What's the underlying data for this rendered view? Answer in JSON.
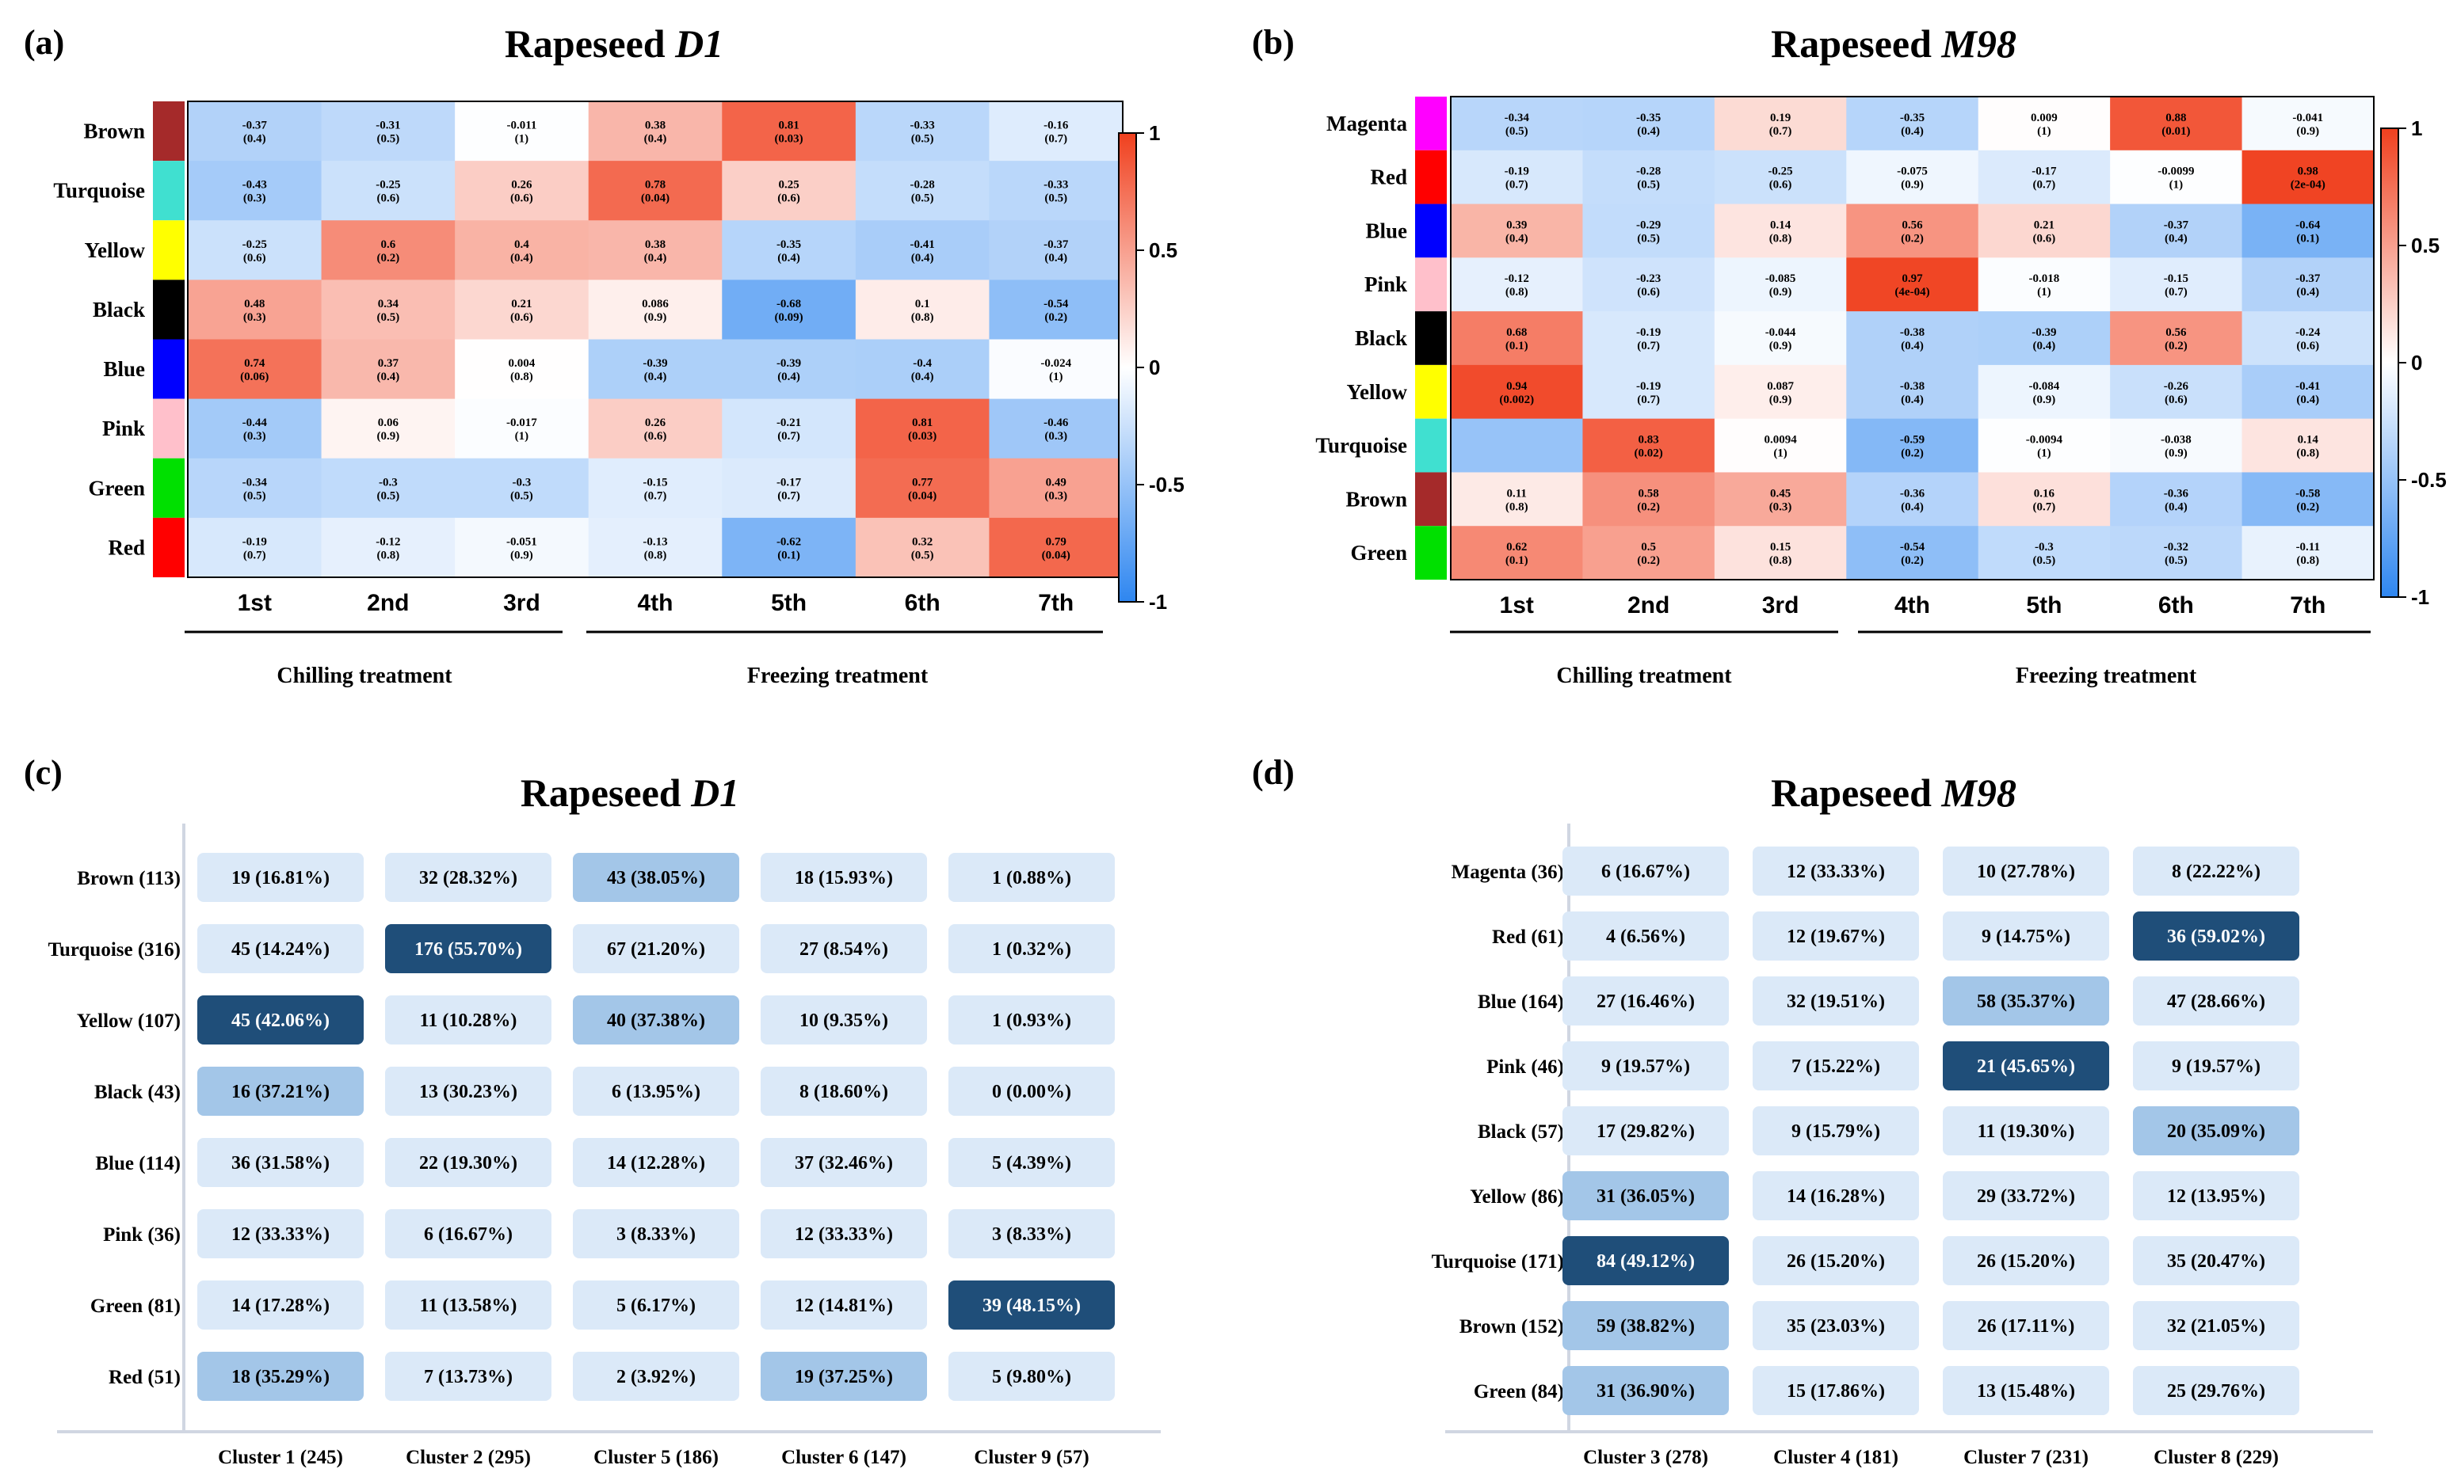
{
  "panels": [
    {
      "label": "(a)",
      "title_prefix": "Rapeseed ",
      "title_italic": "D1",
      "groups": [
        "Chilling treatment",
        "Freezing treatment"
      ]
    },
    {
      "label": "(b)",
      "title_prefix": "Rapeseed ",
      "title_italic": "M98",
      "groups": [
        "Chilling treatment",
        "Freezing treatment"
      ]
    },
    {
      "label": "(c)",
      "title_prefix": "Rapeseed ",
      "title_italic": "D1"
    },
    {
      "label": "(d)",
      "title_prefix": "Rapeseed ",
      "title_italic": "M98"
    }
  ],
  "chart_data": [
    {
      "type": "heatmap",
      "title": "Rapeseed D1",
      "columns": [
        "1st",
        "2nd",
        "3rd",
        "4th",
        "5th",
        "6th",
        "7th"
      ],
      "rows": [
        {
          "name": "Brown",
          "color": "#a52a2a",
          "r": [
            "-0.37",
            "-0.31",
            "-0.011",
            "0.38",
            "0.81",
            "-0.33",
            "-0.16"
          ],
          "p": [
            "(0.4)",
            "(0.5)",
            "(1)",
            "(0.4)",
            "(0.03)",
            "(0.5)",
            "(0.7)"
          ]
        },
        {
          "name": "Turquoise",
          "color": "#40e0d0",
          "r": [
            "-0.43",
            "-0.25",
            "0.26",
            "0.78",
            "0.25",
            "-0.28",
            "-0.33"
          ],
          "p": [
            "(0.3)",
            "(0.6)",
            "(0.6)",
            "(0.04)",
            "(0.6)",
            "(0.5)",
            "(0.5)"
          ]
        },
        {
          "name": "Yellow",
          "color": "#ffff00",
          "r": [
            "-0.25",
            "0.6",
            "0.4",
            "0.38",
            "-0.35",
            "-0.41",
            "-0.37"
          ],
          "p": [
            "(0.6)",
            "(0.2)",
            "(0.4)",
            "(0.4)",
            "(0.4)",
            "(0.4)",
            "(0.4)"
          ]
        },
        {
          "name": "Black",
          "color": "#000000",
          "r": [
            "0.48",
            "0.34",
            "0.21",
            "0.086",
            "-0.68",
            "0.1",
            "-0.54"
          ],
          "p": [
            "(0.3)",
            "(0.5)",
            "(0.6)",
            "(0.9)",
            "(0.09)",
            "(0.8)",
            "(0.2)"
          ]
        },
        {
          "name": "Blue",
          "color": "#0000ff",
          "r": [
            "0.74",
            "0.37",
            "0.004",
            "-0.39",
            "-0.39",
            "-0.4",
            "-0.024"
          ],
          "p": [
            "(0.06)",
            "(0.4)",
            "(0.8)",
            "(0.4)",
            "(0.4)",
            "(0.4)",
            "(1)"
          ]
        },
        {
          "name": "Pink",
          "color": "#ffc0cb",
          "r": [
            "-0.44",
            "0.06",
            "-0.017",
            "0.26",
            "-0.21",
            "0.81",
            "-0.46"
          ],
          "p": [
            "(0.3)",
            "(0.9)",
            "(1)",
            "(0.6)",
            "(0.7)",
            "(0.03)",
            "(0.3)"
          ]
        },
        {
          "name": "Green",
          "color": "#00e000",
          "r": [
            "-0.34",
            "-0.3",
            "-0.3",
            "-0.15",
            "-0.17",
            "0.77",
            "0.49"
          ],
          "p": [
            "(0.5)",
            "(0.5)",
            "(0.5)",
            "(0.7)",
            "(0.7)",
            "(0.04)",
            "(0.3)"
          ]
        },
        {
          "name": "Red",
          "color": "#ff0000",
          "r": [
            "-0.19",
            "-0.12",
            "-0.051",
            "-0.13",
            "-0.62",
            "0.32",
            "0.79"
          ],
          "p": [
            "(0.7)",
            "(0.8)",
            "(0.9)",
            "(0.8)",
            "(0.1)",
            "(0.5)",
            "(0.04)"
          ]
        }
      ],
      "colorbar_ticks": [
        "1",
        "0.5",
        "0",
        "-0.5",
        "-1"
      ],
      "colorbar_range": [
        -1,
        1
      ],
      "colors": {
        "low": "#2e86f0",
        "mid": "#ffffff",
        "high": "#f0401e"
      }
    },
    {
      "type": "heatmap",
      "title": "Rapeseed M98",
      "columns": [
        "1st",
        "2nd",
        "3rd",
        "4th",
        "5th",
        "6th",
        "7th"
      ],
      "rows": [
        {
          "name": "Magenta",
          "color": "#ff00ff",
          "r": [
            "-0.34",
            "-0.35",
            "0.19",
            "-0.35",
            "0.009",
            "0.88",
            "-0.041"
          ],
          "p": [
            "(0.5)",
            "(0.4)",
            "(0.7)",
            "(0.4)",
            "(1)",
            "(0.01)",
            "(0.9)"
          ]
        },
        {
          "name": "Red",
          "color": "#ff0000",
          "r": [
            "-0.19",
            "-0.28",
            "-0.25",
            "-0.075",
            "-0.17",
            "-0.0099",
            "0.98"
          ],
          "p": [
            "(0.7)",
            "(0.5)",
            "(0.6)",
            "(0.9)",
            "(0.7)",
            "(1)",
            "(2e-04)"
          ]
        },
        {
          "name": "Blue",
          "color": "#0000ff",
          "r": [
            "0.39",
            "-0.29",
            "0.14",
            "0.56",
            "0.21",
            "-0.37",
            "-0.64"
          ],
          "p": [
            "(0.4)",
            "(0.5)",
            "(0.8)",
            "(0.2)",
            "(0.6)",
            "(0.4)",
            "(0.1)"
          ]
        },
        {
          "name": "Pink",
          "color": "#ffc0cb",
          "r": [
            "-0.12",
            "-0.23",
            "-0.085",
            "0.97",
            "-0.018",
            "-0.15",
            "-0.37"
          ],
          "p": [
            "(0.8)",
            "(0.6)",
            "(0.9)",
            "(4e-04)",
            "(1)",
            "(0.7)",
            "(0.4)"
          ]
        },
        {
          "name": "Black",
          "color": "#000000",
          "r": [
            "0.68",
            "-0.19",
            "-0.044",
            "-0.38",
            "-0.39",
            "0.56",
            "-0.24"
          ],
          "p": [
            "(0.1)",
            "(0.7)",
            "(0.9)",
            "(0.4)",
            "(0.4)",
            "(0.2)",
            "(0.6)"
          ]
        },
        {
          "name": "Yellow",
          "color": "#ffff00",
          "r": [
            "0.94",
            "-0.19",
            "0.087",
            "-0.38",
            "-0.084",
            "-0.26",
            "-0.41"
          ],
          "p": [
            "(0.002)",
            "(0.7)",
            "(0.9)",
            "(0.4)",
            "(0.9)",
            "(0.6)",
            "(0.4)"
          ]
        },
        {
          "name": "Turquoise",
          "color": "#40e0d0",
          "r": [
            "",
            "0.83",
            "0.0094",
            "-0.59",
            "-0.0094",
            "-0.038",
            "0.14"
          ],
          "p": [
            "",
            "(0.02)",
            "(1)",
            "(0.2)",
            "(1)",
            "(0.9)",
            "(0.8)"
          ],
          "first_cell_value": -0.5
        },
        {
          "name": "Brown",
          "color": "#a52a2a",
          "r": [
            "0.11",
            "0.58",
            "0.45",
            "-0.36",
            "0.16",
            "-0.36",
            "-0.58"
          ],
          "p": [
            "(0.8)",
            "(0.2)",
            "(0.3)",
            "(0.4)",
            "(0.7)",
            "(0.4)",
            "(0.2)"
          ]
        },
        {
          "name": "Green",
          "color": "#00e000",
          "r": [
            "0.62",
            "0.5",
            "0.15",
            "-0.54",
            "-0.3",
            "-0.32",
            "-0.11"
          ],
          "p": [
            "(0.1)",
            "(0.2)",
            "(0.8)",
            "(0.2)",
            "(0.5)",
            "(0.5)",
            "(0.8)"
          ]
        }
      ],
      "colorbar_ticks": [
        "1",
        "0.5",
        "0",
        "-0.5",
        "-1"
      ],
      "colorbar_range": [
        -1,
        1
      ],
      "colors": {
        "low": "#2e86f0",
        "mid": "#ffffff",
        "high": "#f0401e"
      }
    },
    {
      "type": "table",
      "title": "Rapeseed D1",
      "columns": [
        "Cluster 1 (245)",
        "Cluster 2 (295)",
        "Cluster 5 (186)",
        "Cluster 6 (147)",
        "Cluster 9 (57)"
      ],
      "rows": [
        {
          "name": "Brown (113)",
          "cells": [
            "19 (16.81%)",
            "32 (28.32%)",
            "43 (38.05%)",
            "18 (15.93%)",
            "1 (0.88%)"
          ],
          "pct": [
            16.81,
            28.32,
            38.05,
            15.93,
            0.88
          ]
        },
        {
          "name": "Turquoise (316)",
          "cells": [
            "45 (14.24%)",
            "176 (55.70%)",
            "67 (21.20%)",
            "27 (8.54%)",
            "1 (0.32%)"
          ],
          "pct": [
            14.24,
            55.7,
            21.2,
            8.54,
            0.32
          ]
        },
        {
          "name": "Yellow (107)",
          "cells": [
            "45 (42.06%)",
            "11 (10.28%)",
            "40 (37.38%)",
            "10 (9.35%)",
            "1 (0.93%)"
          ],
          "pct": [
            42.06,
            10.28,
            37.38,
            9.35,
            0.93
          ]
        },
        {
          "name": "Black (43)",
          "cells": [
            "16 (37.21%)",
            "13 (30.23%)",
            "6 (13.95%)",
            "8 (18.60%)",
            "0 (0.00%)"
          ],
          "pct": [
            37.21,
            30.23,
            13.95,
            18.6,
            0.0
          ]
        },
        {
          "name": "Blue (114)",
          "cells": [
            "36 (31.58%)",
            "22 (19.30%)",
            "14 (12.28%)",
            "37 (32.46%)",
            "5 (4.39%)"
          ],
          "pct": [
            31.58,
            19.3,
            12.28,
            32.46,
            4.39
          ]
        },
        {
          "name": "Pink (36)",
          "cells": [
            "12 (33.33%)",
            "6 (16.67%)",
            "3 (8.33%)",
            "12 (33.33%)",
            "3 (8.33%)"
          ],
          "pct": [
            33.33,
            16.67,
            8.33,
            33.33,
            8.33
          ]
        },
        {
          "name": "Green (81)",
          "cells": [
            "14 (17.28%)",
            "11 (13.58%)",
            "5 (6.17%)",
            "12 (14.81%)",
            "39 (48.15%)"
          ],
          "pct": [
            17.28,
            13.58,
            6.17,
            14.81,
            48.15
          ]
        },
        {
          "name": "Red (51)",
          "cells": [
            "18 (35.29%)",
            "7 (13.73%)",
            "2 (3.92%)",
            "19 (37.25%)",
            "5 (9.80%)"
          ],
          "pct": [
            35.29,
            13.73,
            3.92,
            37.25,
            9.8
          ]
        }
      ],
      "colors": {
        "light": "#dbe9f8",
        "medium": "#a3c6e8",
        "dark": "#1f4e79",
        "axis": "#d0d6e2"
      }
    },
    {
      "type": "table",
      "title": "Rapeseed M98",
      "columns": [
        "Cluster 3 (278)",
        "Cluster 4 (181)",
        "Cluster 7 (231)",
        "Cluster 8 (229)"
      ],
      "rows": [
        {
          "name": "Magenta (36)",
          "cells": [
            "6 (16.67%)",
            "12 (33.33%)",
            "10 (27.78%)",
            "8 (22.22%)"
          ],
          "pct": [
            16.67,
            33.33,
            27.78,
            22.22
          ]
        },
        {
          "name": "Red (61)",
          "cells": [
            "4 (6.56%)",
            "12 (19.67%)",
            "9 (14.75%)",
            "36 (59.02%)"
          ],
          "pct": [
            6.56,
            19.67,
            14.75,
            59.02
          ]
        },
        {
          "name": "Blue (164)",
          "cells": [
            "27 (16.46%)",
            "32 (19.51%)",
            "58 (35.37%)",
            "47 (28.66%)"
          ],
          "pct": [
            16.46,
            19.51,
            35.37,
            28.66
          ]
        },
        {
          "name": "Pink (46)",
          "cells": [
            "9 (19.57%)",
            "7 (15.22%)",
            "21 (45.65%)",
            "9 (19.57%)"
          ],
          "pct": [
            19.57,
            15.22,
            45.65,
            19.57
          ]
        },
        {
          "name": "Black (57)",
          "cells": [
            "17 (29.82%)",
            "9 (15.79%)",
            "11 (19.30%)",
            "20 (35.09%)"
          ],
          "pct": [
            29.82,
            15.79,
            19.3,
            35.09
          ]
        },
        {
          "name": "Yellow (86)",
          "cells": [
            "31 (36.05%)",
            "14 (16.28%)",
            "29 (33.72%)",
            "12 (13.95%)"
          ],
          "pct": [
            36.05,
            16.28,
            33.72,
            13.95
          ]
        },
        {
          "name": "Turquoise (171)",
          "cells": [
            "84 (49.12%)",
            "26 (15.20%)",
            "26 (15.20%)",
            "35 (20.47%)"
          ],
          "pct": [
            49.12,
            15.2,
            15.2,
            20.47
          ]
        },
        {
          "name": "Brown (152)",
          "cells": [
            "59 (38.82%)",
            "35 (23.03%)",
            "26 (17.11%)",
            "32 (21.05%)"
          ],
          "pct": [
            38.82,
            23.03,
            17.11,
            21.05
          ]
        },
        {
          "name": "Green (84)",
          "cells": [
            "31 (36.90%)",
            "15 (17.86%)",
            "13 (15.48%)",
            "25 (29.76%)"
          ],
          "pct": [
            36.9,
            17.86,
            15.48,
            29.76
          ]
        }
      ],
      "colors": {
        "light": "#dbe9f8",
        "medium": "#a3c6e8",
        "dark": "#1f4e79",
        "axis": "#d0d6e2"
      }
    }
  ]
}
